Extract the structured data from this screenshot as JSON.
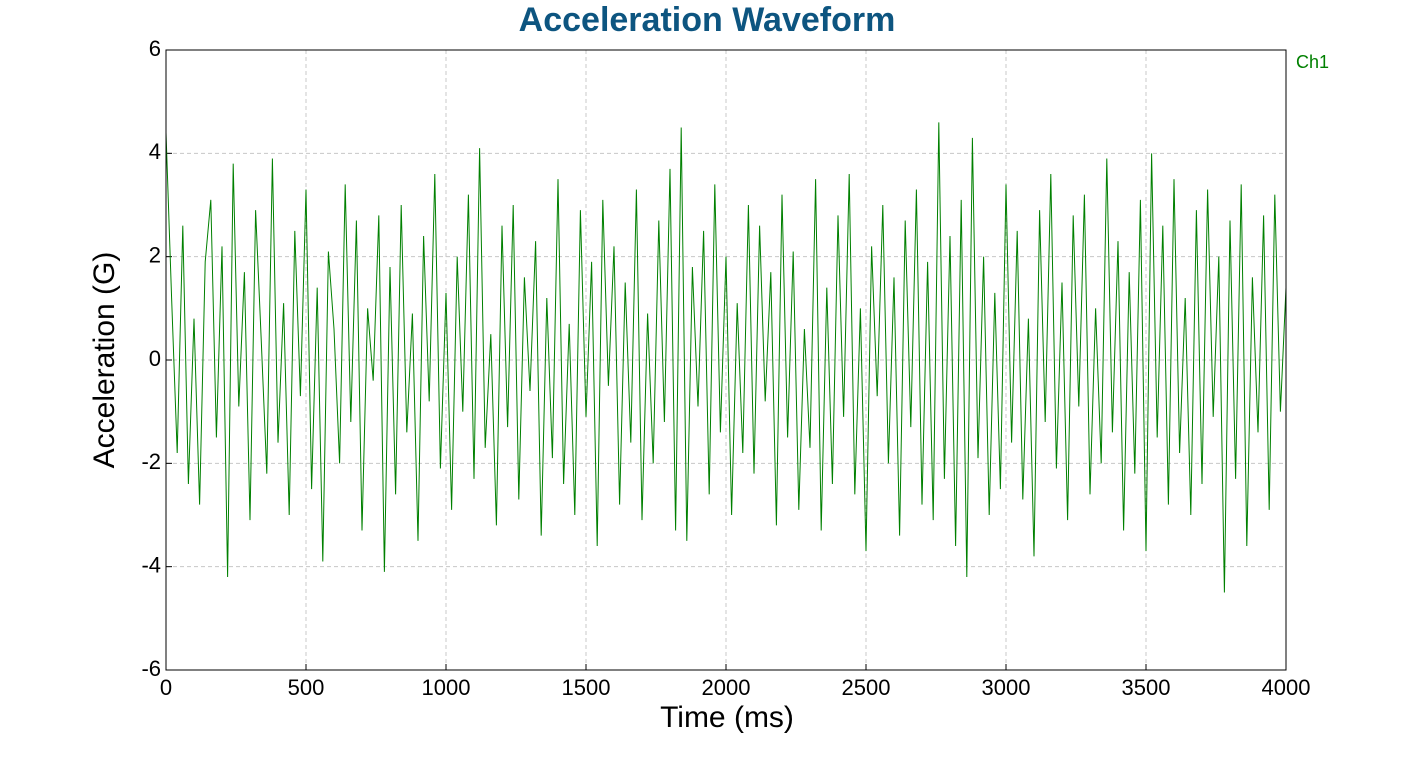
{
  "chart_data": {
    "type": "line",
    "title": "Acceleration Waveform",
    "x_label": "Time (ms)",
    "y_label": "Acceleration (G)",
    "xlim": [
      0,
      4000
    ],
    "xticks": [
      0,
      500,
      1000,
      1500,
      2000,
      2500,
      3000,
      3500,
      4000
    ],
    "ylim": [
      -6,
      6
    ],
    "yticks": [
      -6,
      -4,
      -2,
      0,
      2,
      4,
      6
    ],
    "grid": true,
    "legend": "top-right",
    "x": [
      0,
      20,
      40,
      60,
      80,
      100,
      120,
      140,
      160,
      180,
      200,
      220,
      240,
      260,
      280,
      300,
      320,
      340,
      360,
      380,
      400,
      420,
      440,
      460,
      480,
      500,
      520,
      540,
      560,
      580,
      600,
      620,
      640,
      660,
      680,
      700,
      720,
      740,
      760,
      780,
      800,
      820,
      840,
      860,
      880,
      900,
      920,
      940,
      960,
      980,
      1000,
      1020,
      1040,
      1060,
      1080,
      1100,
      1120,
      1140,
      1160,
      1180,
      1200,
      1220,
      1240,
      1260,
      1280,
      1300,
      1320,
      1340,
      1360,
      1380,
      1400,
      1420,
      1440,
      1460,
      1480,
      1500,
      1520,
      1540,
      1560,
      1580,
      1600,
      1620,
      1640,
      1660,
      1680,
      1700,
      1720,
      1740,
      1760,
      1780,
      1800,
      1820,
      1840,
      1860,
      1880,
      1900,
      1920,
      1940,
      1960,
      1980,
      2000,
      2020,
      2040,
      2060,
      2080,
      2100,
      2120,
      2140,
      2160,
      2180,
      2200,
      2220,
      2240,
      2260,
      2280,
      2300,
      2320,
      2340,
      2360,
      2380,
      2400,
      2420,
      2440,
      2460,
      2480,
      2500,
      2520,
      2540,
      2560,
      2580,
      2600,
      2620,
      2640,
      2660,
      2680,
      2700,
      2720,
      2740,
      2760,
      2780,
      2800,
      2820,
      2840,
      2860,
      2880,
      2900,
      2920,
      2940,
      2960,
      2980,
      3000,
      3020,
      3040,
      3060,
      3080,
      3100,
      3120,
      3140,
      3160,
      3180,
      3200,
      3220,
      3240,
      3260,
      3280,
      3300,
      3320,
      3340,
      3360,
      3380,
      3400,
      3420,
      3440,
      3460,
      3480,
      3500,
      3520,
      3540,
      3560,
      3580,
      3600,
      3620,
      3640,
      3660,
      3680,
      3700,
      3720,
      3740,
      3760,
      3780,
      3800,
      3820,
      3840,
      3860,
      3880,
      3900,
      3920,
      3940,
      3960,
      3980,
      4000
    ],
    "series": [
      {
        "name": "Ch1",
        "color": "#008000",
        "values": [
          4.4,
          1.2,
          -1.8,
          2.6,
          -2.4,
          0.8,
          -2.8,
          1.9,
          3.1,
          -1.5,
          2.2,
          -4.2,
          3.8,
          -0.9,
          1.7,
          -3.1,
          2.9,
          0.4,
          -2.2,
          3.9,
          -1.6,
          1.1,
          -3.0,
          2.5,
          -0.7,
          3.3,
          -2.5,
          1.4,
          -3.9,
          2.1,
          0.6,
          -2.0,
          3.4,
          -1.2,
          2.7,
          -3.3,
          1.0,
          -0.4,
          2.8,
          -4.1,
          1.8,
          -2.6,
          3.0,
          -1.4,
          0.9,
          -3.5,
          2.4,
          -0.8,
          3.6,
          -2.1,
          1.3,
          -2.9,
          2.0,
          -1.0,
          3.2,
          -2.3,
          4.1,
          -1.7,
          0.5,
          -3.2,
          2.6,
          -1.3,
          3.0,
          -2.7,
          1.6,
          -0.6,
          2.3,
          -3.4,
          1.2,
          -1.9,
          3.5,
          -2.4,
          0.7,
          -3.0,
          2.9,
          -1.1,
          1.9,
          -3.6,
          3.1,
          -0.5,
          2.2,
          -2.8,
          1.5,
          -1.6,
          3.3,
          -3.1,
          0.9,
          -2.0,
          2.7,
          -1.2,
          3.7,
          -3.3,
          4.5,
          -3.5,
          1.8,
          -0.9,
          2.5,
          -2.6,
          3.4,
          -1.4,
          2.0,
          -3.0,
          1.1,
          -1.8,
          3.0,
          -2.2,
          2.6,
          -0.8,
          1.7,
          -3.2,
          3.2,
          -1.5,
          2.1,
          -2.9,
          0.6,
          -1.7,
          3.5,
          -3.3,
          1.4,
          -2.4,
          2.8,
          -1.1,
          3.6,
          -2.6,
          1.0,
          -3.7,
          2.2,
          -0.7,
          3.0,
          -2.0,
          1.6,
          -3.4,
          2.7,
          -1.3,
          3.3,
          -2.8,
          1.9,
          -3.1,
          4.6,
          -2.3,
          2.4,
          -3.6,
          3.1,
          -4.2,
          4.3,
          -1.9,
          2.0,
          -3.0,
          1.3,
          -2.5,
          3.4,
          -1.6,
          2.5,
          -2.7,
          0.8,
          -3.8,
          2.9,
          -1.2,
          3.6,
          -2.1,
          1.5,
          -3.1,
          2.8,
          -0.9,
          3.2,
          -2.6,
          1.0,
          -2.0,
          3.9,
          -1.4,
          2.3,
          -3.3,
          1.7,
          -2.2,
          3.1,
          -3.7,
          4.0,
          -1.5,
          2.6,
          -2.8,
          3.5,
          -1.8,
          1.2,
          -3.0,
          2.9,
          -2.4,
          3.3,
          -1.1,
          2.0,
          -4.5,
          2.7,
          -2.3,
          3.4,
          -3.6,
          1.6,
          -1.4,
          2.8,
          -2.9,
          3.2,
          -1.0,
          1.4
        ]
      }
    ]
  }
}
